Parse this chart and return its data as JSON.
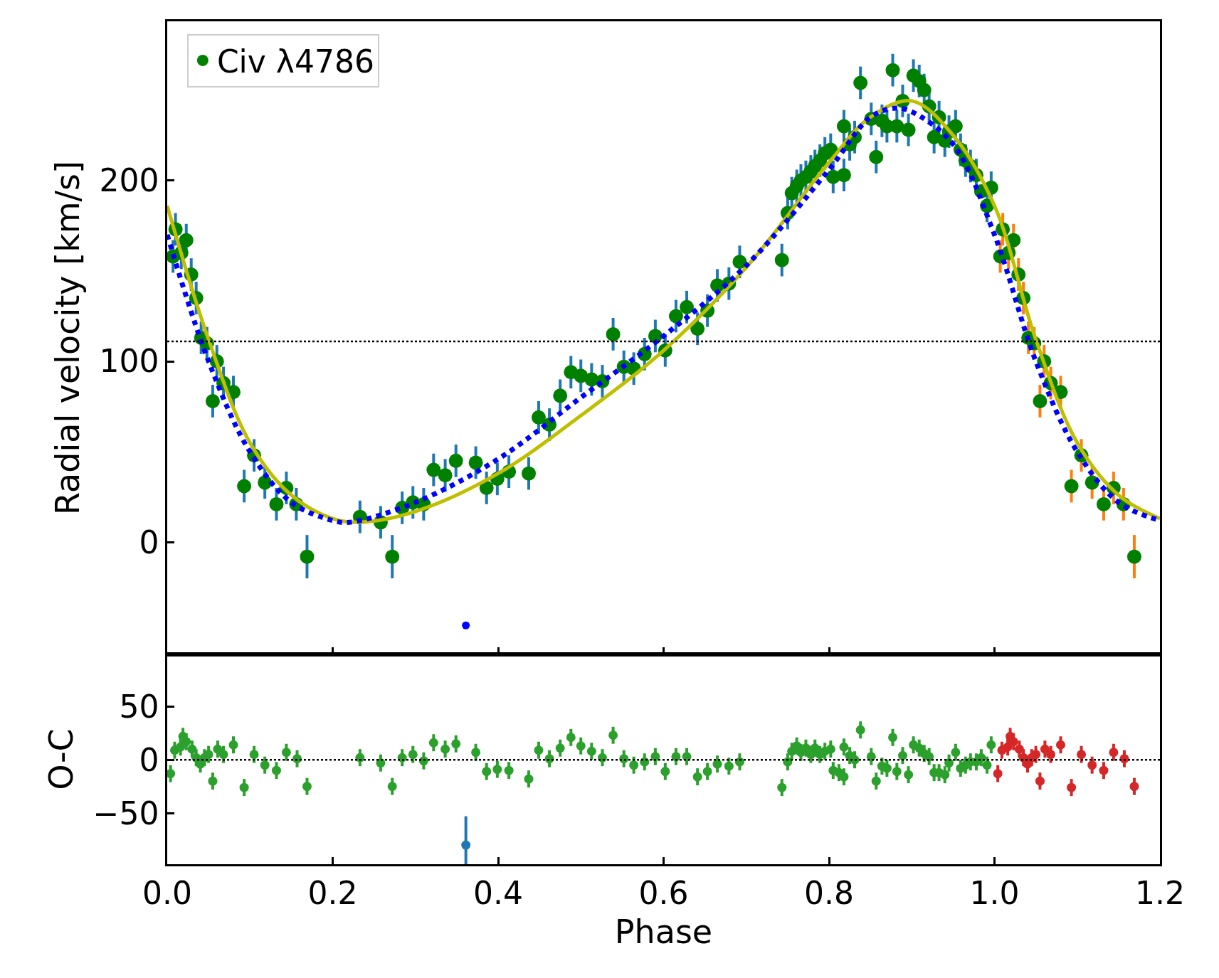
{
  "chart_data": [
    {
      "type": "scatter",
      "ylabel": "Radial velocity [km/s]",
      "xlim": [
        0,
        1.2
      ],
      "xticks": [
        {
          "value": 0,
          "label": null
        },
        {
          "value": 0.2,
          "label": null
        },
        {
          "value": 0.4,
          "label": null
        },
        {
          "value": 0.6,
          "label": null
        },
        {
          "value": 0.8,
          "label": null
        },
        {
          "value": 1.0,
          "label": null
        },
        {
          "value": 1.2,
          "label": null
        }
      ],
      "ylim": [
        -62,
        288
      ],
      "yticks": [
        0,
        100,
        200
      ],
      "tick_labels": "y",
      "legend": "top left",
      "grid": false,
      "ref_lines": [
        {
          "axis": "y",
          "value": 111,
          "color": "#000000",
          "line_style": "dotted"
        }
      ],
      "series": [
        {
          "type": "line",
          "color": "#bfbf00",
          "line_style": "solid",
          "x": [
            0,
            0.05,
            0.1,
            0.15,
            0.2,
            0.23,
            0.3,
            0.4,
            0.5,
            0.6,
            0.7,
            0.8,
            0.85,
            0.9,
            0.95,
            1.0,
            1.05,
            1.1,
            1.15,
            1.2
          ],
          "values": [
            186,
            112,
            55,
            26,
            13,
            11,
            17,
            38,
            70,
            106,
            152,
            210,
            235,
            244,
            225,
            186,
            112,
            55,
            26,
            13
          ]
        },
        {
          "type": "line",
          "color": "#0000ff",
          "line_style": "dotted",
          "x": [
            0,
            0.05,
            0.1,
            0.15,
            0.2,
            0.22,
            0.3,
            0.4,
            0.5,
            0.6,
            0.7,
            0.8,
            0.85,
            0.88,
            0.9,
            0.95,
            1.0,
            1.05,
            1.1,
            1.15,
            1.2
          ],
          "values": [
            170,
            100,
            50,
            22,
            12,
            11,
            22,
            46,
            80,
            114,
            153,
            206,
            235,
            240,
            238,
            220,
            170,
            100,
            50,
            22,
            12
          ]
        },
        {
          "name": "Civ λ4786",
          "marker": "circle",
          "color": "#008000",
          "x": [
            1.007,
            1.01,
            1.017,
            1.023,
            1.029,
            1.035,
            1.041,
            1.048,
            1.055,
            1.06,
            1.068,
            1.08,
            1.093,
            1.105,
            1.118,
            1.132,
            1.144,
            1.156,
            1.169
          ],
          "values": [
            158,
            173,
            160,
            167,
            148,
            135,
            113,
            110,
            78,
            100,
            88,
            83,
            31,
            48,
            33,
            21,
            30,
            21,
            -8
          ],
          "errors": [
            9,
            9,
            9,
            9,
            9,
            9,
            9,
            9,
            9,
            9,
            9,
            9,
            9,
            9,
            9,
            9,
            9,
            9,
            12
          ]
        },
        {
          "marker": "circle",
          "color": "#008000",
          "x": [
            0.007,
            0.01,
            0.017,
            0.023,
            0.029,
            0.035,
            0.041,
            0.048,
            0.055,
            0.06,
            0.068,
            0.08,
            0.093,
            0.105,
            0.118,
            0.132,
            0.144,
            0.156,
            0.169,
            0.233,
            0.258,
            0.272,
            0.284,
            0.297,
            0.31,
            0.322,
            0.336,
            0.349,
            0.373,
            0.386,
            0.399,
            0.413,
            0.437,
            0.449,
            0.462,
            0.475,
            0.488,
            0.5,
            0.513,
            0.526,
            0.539,
            0.552,
            0.564,
            0.577,
            0.59,
            0.602,
            0.615,
            0.628,
            0.641,
            0.653,
            0.665,
            0.679,
            0.692,
            0.743,
            0.75,
            0.755,
            0.761,
            0.766,
            0.772,
            0.778,
            0.783,
            0.789,
            0.795,
            0.802,
            0.805,
            0.818,
            0.818,
            0.825,
            0.831,
            0.838,
            0.851,
            0.857,
            0.864,
            0.87,
            0.877,
            0.882,
            0.889,
            0.896,
            0.902,
            0.909,
            0.915,
            0.921,
            0.927,
            0.933,
            0.94,
            0.945,
            0.953,
            0.959,
            0.965,
            0.971,
            0.978,
            0.984,
            0.991,
            0.996
          ],
          "values": [
            158,
            173,
            160,
            167,
            148,
            135,
            113,
            110,
            78,
            100,
            88,
            83,
            31,
            48,
            33,
            21,
            30,
            21,
            -8,
            14,
            11,
            -8,
            19,
            22,
            21,
            40,
            37,
            45,
            44,
            30,
            35,
            39,
            38,
            69,
            65,
            81,
            94,
            92,
            90,
            89,
            115,
            97,
            96,
            104,
            114,
            106,
            125,
            130,
            118,
            128,
            142,
            143,
            155,
            156,
            182,
            193,
            197,
            200,
            202,
            205,
            208,
            211,
            215,
            217,
            202,
            203,
            230,
            220,
            224,
            254,
            234,
            213,
            233,
            230,
            261,
            230,
            244,
            228,
            258,
            255,
            250,
            241,
            224,
            235,
            222,
            227,
            230,
            217,
            211,
            208,
            203,
            194,
            186,
            196
          ],
          "errors": [
            9,
            9,
            9,
            9,
            9,
            9,
            9,
            9,
            9,
            9,
            9,
            9,
            9,
            9,
            9,
            9,
            9,
            9,
            12,
            9,
            9,
            12,
            9,
            9,
            9,
            9,
            9,
            9,
            9,
            9,
            9,
            9,
            9,
            9,
            9,
            9,
            9,
            9,
            9,
            9,
            9,
            9,
            9,
            9,
            9,
            9,
            9,
            9,
            9,
            9,
            9,
            9,
            9,
            9,
            9,
            9,
            9,
            9,
            9,
            9,
            9,
            9,
            9,
            9,
            9,
            9,
            9,
            9,
            9,
            9,
            9,
            9,
            9,
            9,
            9,
            9,
            9,
            9,
            9,
            9,
            9,
            9,
            9,
            9,
            9,
            9,
            9,
            9,
            9,
            9,
            9,
            null,
            9,
            9
          ]
        },
        {
          "marker": "circle",
          "color": "#0000ff",
          "x": [
            0.361
          ],
          "values": [
            -46
          ]
        }
      ]
    },
    {
      "type": "scatter",
      "xlabel": "Phase",
      "ylabel": "O-C",
      "xlim": [
        0,
        1.2
      ],
      "xticks": [
        {
          "value": 0,
          "label": "0.0"
        },
        {
          "value": 0.2,
          "label": "0.2"
        },
        {
          "value": 0.4,
          "label": "0.4"
        },
        {
          "value": 0.6,
          "label": "0.6"
        },
        {
          "value": 0.8,
          "label": "0.8"
        },
        {
          "value": 1.0,
          "label": "1.0"
        },
        {
          "value": 1.2,
          "label": "1.2"
        }
      ],
      "ylim": [
        -98,
        99
      ],
      "yticks": [
        {
          "value": -50,
          "label": "−50"
        },
        0,
        50
      ],
      "legend": false,
      "grid": false,
      "ref_lines": [
        {
          "axis": "y",
          "value": 0,
          "color": "#000000",
          "line_style": "dotted"
        }
      ],
      "series": [
        {
          "marker": "circle",
          "color": "#2ca02c",
          "x": [
            0.004,
            0.009,
            0.016,
            0.019,
            0.023,
            0.03,
            0.035,
            0.04,
            0.045,
            0.05,
            0.055,
            0.061,
            0.068,
            0.08,
            0.093,
            0.105,
            0.118,
            0.132,
            0.144,
            0.157,
            0.169,
            0.233,
            0.258,
            0.272,
            0.284,
            0.297,
            0.31,
            0.322,
            0.336,
            0.349,
            0.373,
            0.386,
            0.399,
            0.413,
            0.437,
            0.449,
            0.462,
            0.475,
            0.488,
            0.5,
            0.513,
            0.526,
            0.539,
            0.552,
            0.564,
            0.577,
            0.59,
            0.602,
            0.615,
            0.628,
            0.641,
            0.653,
            0.665,
            0.679,
            0.692,
            0.743,
            0.75,
            0.755,
            0.761,
            0.766,
            0.772,
            0.778,
            0.783,
            0.789,
            0.795,
            0.802,
            0.805,
            0.812,
            0.818,
            0.818,
            0.825,
            0.831,
            0.838,
            0.851,
            0.857,
            0.864,
            0.87,
            0.877,
            0.882,
            0.889,
            0.896,
            0.902,
            0.909,
            0.915,
            0.921,
            0.927,
            0.933,
            0.94,
            0.945,
            0.953,
            0.959,
            0.965,
            0.971,
            0.978,
            0.984,
            0.991,
            0.996
          ],
          "values": [
            -13,
            9,
            12,
            22,
            17,
            10,
            2,
            -4,
            2,
            5,
            -20,
            10,
            5,
            14,
            -26,
            5,
            -5,
            -10,
            7,
            1,
            -25,
            2,
            -3,
            -25,
            2,
            5,
            -1,
            16,
            10,
            15,
            7,
            -11,
            -9,
            -10,
            -18,
            9,
            1,
            11,
            21,
            13,
            8,
            2,
            23,
            1,
            -5,
            -2,
            3,
            -11,
            3,
            3,
            -16,
            -11,
            -4,
            -6,
            -2,
            -26,
            -2,
            8,
            13,
            7,
            11,
            5,
            11,
            5,
            8,
            10,
            -10,
            -12,
            12,
            -16,
            4,
            0,
            28,
            3,
            -20,
            -6,
            -8,
            21,
            -11,
            4,
            -14,
            14,
            11,
            6,
            3,
            -12,
            -12,
            -14,
            -3,
            7,
            -8,
            -5,
            -2,
            -2,
            2,
            -5,
            14
          ],
          "errors": [
            8,
            8,
            8,
            8,
            8,
            8,
            8,
            8,
            8,
            8,
            8,
            8,
            8,
            8,
            8,
            8,
            8,
            8,
            8,
            8,
            8,
            8,
            8,
            8,
            8,
            8,
            8,
            8,
            8,
            8,
            8,
            8,
            8,
            8,
            8,
            8,
            8,
            8,
            8,
            8,
            8,
            8,
            8,
            8,
            8,
            8,
            8,
            8,
            8,
            8,
            8,
            8,
            8,
            8,
            8,
            8,
            8,
            8,
            8,
            8,
            8,
            8,
            8,
            8,
            8,
            8,
            8,
            8,
            8,
            8,
            8,
            8,
            8,
            8,
            8,
            8,
            8,
            8,
            8,
            8,
            8,
            8,
            8,
            8,
            8,
            8,
            8,
            8,
            8,
            8,
            8,
            8,
            8,
            8,
            8,
            8,
            8
          ]
        },
        {
          "marker": "circle",
          "color": "#d62728",
          "x": [
            1.004,
            1.009,
            1.016,
            1.019,
            1.023,
            1.03,
            1.035,
            1.04,
            1.045,
            1.05,
            1.055,
            1.061,
            1.068,
            1.08,
            1.093,
            1.105,
            1.118,
            1.132,
            1.144,
            1.157,
            1.169
          ],
          "values": [
            -13,
            9,
            12,
            22,
            17,
            10,
            2,
            -4,
            2,
            5,
            -20,
            10,
            5,
            14,
            -26,
            5,
            -5,
            -10,
            7,
            1,
            -25
          ],
          "errors": [
            8,
            8,
            8,
            8,
            8,
            8,
            8,
            8,
            8,
            8,
            8,
            8,
            8,
            8,
            8,
            8,
            8,
            8,
            8,
            8,
            8
          ]
        },
        {
          "marker": "circle",
          "color": "#1f77b4",
          "x": [
            0.361
          ],
          "values": [
            -80
          ],
          "errors": [
            27
          ]
        }
      ]
    }
  ]
}
